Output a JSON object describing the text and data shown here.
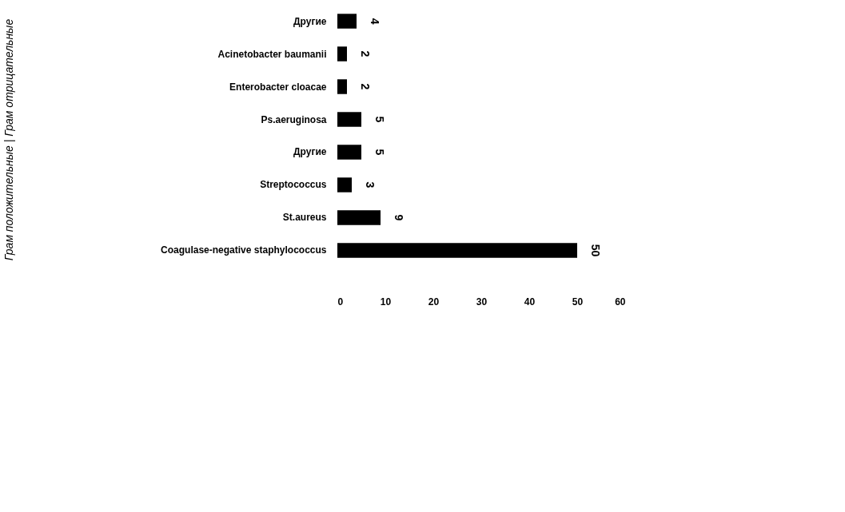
{
  "chart_data": {
    "type": "bar",
    "orientation": "horizontal",
    "categories": [
      "Другие",
      "Acinetobacter baumanii",
      "Enterobacter cloacae",
      "Ps.aeruginosa",
      "Другие",
      "Streptococcus",
      "St.aureus",
      "Coagulase-negative staphylococcus"
    ],
    "values": [
      4,
      2,
      2,
      5,
      5,
      3,
      9,
      50
    ],
    "color": "#000000",
    "xlim": [
      0,
      60
    ],
    "xticks": [
      0,
      10,
      20,
      30,
      40,
      50,
      60
    ],
    "data_labels": true,
    "grid": false,
    "annotations": [
      "Грам положительные  |  Грам отрицательные"
    ]
  }
}
